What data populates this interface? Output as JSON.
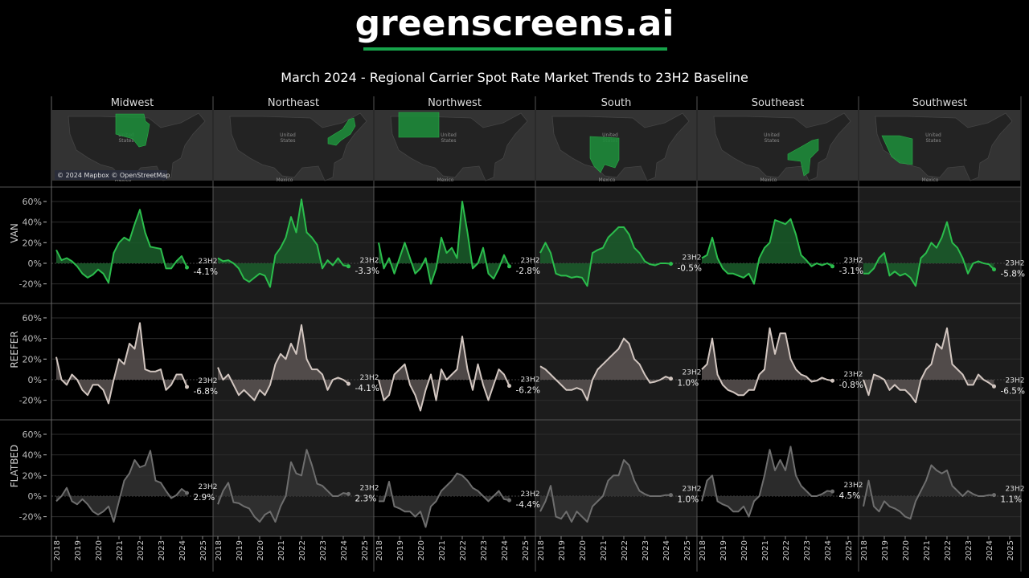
{
  "header": {
    "logo_text": "greenscreens.ai",
    "subtitle": "March 2024 - Regional Carrier Spot Rate Market Trends to 23H2 Baseline"
  },
  "map": {
    "attribution": "© 2024 Mapbox © OpenStreetMap",
    "country_label_1": "United",
    "country_label_2": "States",
    "mexico_label": "Mexico",
    "highlight_color": "#1e8a3a"
  },
  "chart_data": {
    "type": "area",
    "x_unit": "year",
    "x": [
      2018,
      2018.25,
      2018.5,
      2018.75,
      2019,
      2019.25,
      2019.5,
      2019.75,
      2020,
      2020.25,
      2020.5,
      2020.75,
      2021,
      2021.25,
      2021.5,
      2021.75,
      2022,
      2022.25,
      2022.5,
      2022.75,
      2023,
      2023.25,
      2023.5,
      2023.75,
      2024,
      2024.25
    ],
    "x_ticks": [
      "2018",
      "2019",
      "2020",
      "2021",
      "2022",
      "2023",
      "2024",
      "2025"
    ],
    "y_ticks": [
      "60%",
      "40%",
      "20%",
      "0%",
      "-20%"
    ],
    "y_tick_values": [
      60,
      40,
      20,
      0,
      -20
    ],
    "ylim": [
      -39,
      74
    ],
    "grid": true,
    "columns": [
      "Midwest",
      "Northeast",
      "Northwest",
      "South",
      "Southeast",
      "Southwest"
    ],
    "baseline_label": "23H2",
    "rows": [
      {
        "name": "VAN",
        "line_color": "#2bbd4c",
        "fill_color": "#1b5e2c",
        "series": [
          {
            "region": "Midwest",
            "end_label": "-4.1%",
            "values": [
              13,
              3,
              5,
              2,
              -3,
              -10,
              -14,
              -11,
              -6,
              -10,
              -19,
              10,
              20,
              25,
              22,
              38,
              52,
              30,
              16,
              15,
              14,
              -5,
              -5,
              2,
              7,
              -4
            ]
          },
          {
            "region": "Northeast",
            "end_label": "-3.3%",
            "values": [
              5,
              2,
              3,
              0,
              -5,
              -15,
              -18,
              -14,
              -10,
              -12,
              -23,
              8,
              15,
              25,
              45,
              30,
              62,
              30,
              25,
              18,
              -5,
              3,
              -2,
              5,
              -2,
              -3
            ]
          },
          {
            "region": "Northwest",
            "end_label": "-2.8%",
            "values": [
              20,
              -5,
              5,
              -10,
              5,
              20,
              5,
              -10,
              -5,
              5,
              -20,
              -5,
              25,
              10,
              15,
              5,
              60,
              30,
              -5,
              0,
              15,
              -10,
              -15,
              -5,
              8,
              -3
            ]
          },
          {
            "region": "South",
            "end_label": "-0.5%",
            "values": [
              10,
              20,
              10,
              -10,
              -12,
              -12,
              -14,
              -13,
              -14,
              -22,
              10,
              13,
              15,
              25,
              30,
              35,
              35,
              28,
              15,
              10,
              2,
              -1,
              -2,
              0,
              0,
              -0.5
            ]
          },
          {
            "region": "Southeast",
            "end_label": "-3.1%",
            "values": [
              5,
              8,
              25,
              5,
              -5,
              -10,
              -10,
              -12,
              -14,
              -10,
              -20,
              5,
              15,
              20,
              42,
              40,
              38,
              43,
              28,
              8,
              3,
              -3,
              0,
              -2,
              0,
              -3
            ]
          },
          {
            "region": "Southwest",
            "end_label": "-5.8%",
            "values": [
              -10,
              -10,
              -5,
              5,
              10,
              -12,
              -8,
              -12,
              -10,
              -14,
              -22,
              5,
              10,
              20,
              15,
              25,
              40,
              20,
              15,
              5,
              -10,
              0,
              2,
              0,
              -1,
              -6
            ]
          }
        ]
      },
      {
        "name": "REEFER",
        "line_color": "#d2c6c0",
        "fill_color": "#5a5452",
        "series": [
          {
            "region": "Midwest",
            "end_label": "-6.8%",
            "values": [
              22,
              0,
              -5,
              5,
              0,
              -10,
              -15,
              -5,
              -5,
              -10,
              -23,
              0,
              20,
              15,
              35,
              30,
              55,
              10,
              8,
              8,
              10,
              -10,
              -5,
              5,
              5,
              -7
            ]
          },
          {
            "region": "Northeast",
            "end_label": "-4.1%",
            "values": [
              12,
              0,
              5,
              -5,
              -15,
              -10,
              -15,
              -20,
              -10,
              -15,
              -5,
              15,
              25,
              20,
              35,
              25,
              53,
              20,
              10,
              10,
              5,
              -10,
              0,
              2,
              0,
              -4
            ]
          },
          {
            "region": "Northwest",
            "end_label": "-6.2%",
            "values": [
              0,
              -20,
              -15,
              5,
              10,
              15,
              -5,
              -15,
              -30,
              -10,
              5,
              -20,
              10,
              0,
              5,
              10,
              42,
              10,
              -10,
              15,
              -5,
              -20,
              -5,
              10,
              5,
              -6
            ]
          },
          {
            "region": "South",
            "end_label": "1.0%",
            "values": [
              13,
              10,
              5,
              0,
              -5,
              -10,
              -10,
              -8,
              -10,
              -20,
              0,
              10,
              15,
              20,
              25,
              30,
              40,
              35,
              20,
              15,
              5,
              -3,
              -2,
              0,
              3,
              1
            ]
          },
          {
            "region": "Southeast",
            "end_label": "-0.8%",
            "values": [
              10,
              15,
              40,
              5,
              -5,
              -10,
              -12,
              -15,
              -15,
              -10,
              -10,
              5,
              10,
              50,
              25,
              45,
              45,
              20,
              10,
              5,
              3,
              -2,
              -1,
              2,
              0,
              -1
            ]
          },
          {
            "region": "Southwest",
            "end_label": "-6.5%",
            "values": [
              0,
              -15,
              5,
              3,
              0,
              -10,
              -5,
              -10,
              -10,
              -15,
              -22,
              0,
              10,
              15,
              35,
              30,
              50,
              15,
              10,
              5,
              -5,
              -5,
              5,
              0,
              -3,
              -6.5
            ]
          }
        ]
      },
      {
        "name": "FLATBED",
        "line_color": "#6e6e6e",
        "fill_color": "#333333",
        "series": [
          {
            "region": "Midwest",
            "end_label": "2.9%",
            "values": [
              -5,
              0,
              8,
              -5,
              -8,
              -3,
              -8,
              -15,
              -18,
              -15,
              -10,
              -25,
              -5,
              15,
              22,
              35,
              28,
              30,
              44,
              15,
              13,
              5,
              -2,
              1,
              7,
              3
            ]
          },
          {
            "region": "Northeast",
            "end_label": "2.3%",
            "values": [
              -8,
              5,
              13,
              -6,
              -7,
              -10,
              -12,
              -20,
              -25,
              -18,
              -15,
              -25,
              -10,
              0,
              33,
              22,
              20,
              45,
              30,
              12,
              10,
              5,
              0,
              0,
              3,
              2
            ]
          },
          {
            "region": "Northwest",
            "end_label": "-4.4%",
            "values": [
              -5,
              -5,
              14,
              -10,
              -12,
              -15,
              -15,
              -20,
              -15,
              -30,
              -10,
              -5,
              5,
              10,
              15,
              22,
              20,
              15,
              8,
              5,
              0,
              -5,
              0,
              5,
              -3,
              -4
            ]
          },
          {
            "region": "South",
            "end_label": "1.0%",
            "values": [
              -15,
              -5,
              10,
              -20,
              -22,
              -15,
              -25,
              -15,
              -20,
              -25,
              -10,
              -5,
              0,
              15,
              20,
              20,
              35,
              30,
              15,
              5,
              2,
              0,
              0,
              0,
              1,
              1
            ]
          },
          {
            "region": "Southeast",
            "end_label": "4.5%",
            "values": [
              -5,
              15,
              20,
              -5,
              -8,
              -10,
              -15,
              -15,
              -10,
              -20,
              -5,
              0,
              20,
              45,
              25,
              35,
              25,
              48,
              20,
              10,
              5,
              0,
              0,
              2,
              5,
              4.5
            ]
          },
          {
            "region": "Southwest",
            "end_label": "1.1%",
            "values": [
              -10,
              15,
              -10,
              -15,
              -5,
              -10,
              -12,
              -15,
              -20,
              -22,
              -5,
              5,
              15,
              30,
              25,
              22,
              25,
              10,
              5,
              0,
              5,
              2,
              0,
              0,
              1,
              1
            ]
          }
        ]
      }
    ]
  }
}
